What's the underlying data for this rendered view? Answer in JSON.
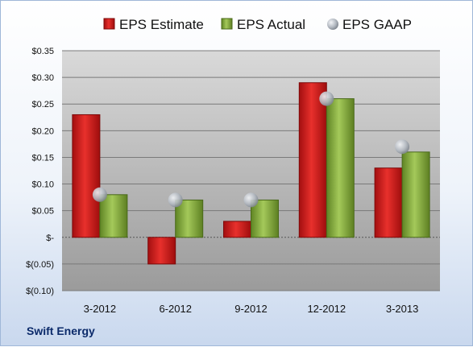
{
  "company": "Swift Energy",
  "chart_data": {
    "type": "bar",
    "categories": [
      "3-2012",
      "6-2012",
      "9-2012",
      "12-2012",
      "3-2013"
    ],
    "series": [
      {
        "name": "EPS Estimate",
        "kind": "bar",
        "color": "#cc1f1f",
        "values": [
          0.23,
          -0.05,
          0.03,
          0.29,
          0.13
        ]
      },
      {
        "name": "EPS Actual",
        "kind": "bar",
        "color": "#7fa832",
        "values": [
          0.08,
          0.07,
          0.07,
          0.26,
          0.16
        ]
      },
      {
        "name": "EPS GAAP",
        "kind": "marker",
        "color": "#b0b6be",
        "values": [
          0.08,
          0.07,
          0.07,
          0.26,
          0.17
        ]
      }
    ],
    "y_ticks": [
      -0.1,
      -0.05,
      0,
      0.05,
      0.1,
      0.15,
      0.2,
      0.25,
      0.3,
      0.35
    ],
    "y_tick_labels": [
      "$(0.10)",
      "$(0.05)",
      "$-",
      "$0.05",
      "$0.10",
      "$0.15",
      "$0.20",
      "$0.25",
      "$0.30",
      "$0.35"
    ],
    "ylim": [
      -0.1,
      0.35
    ],
    "grid": true,
    "legend_position": "top"
  }
}
